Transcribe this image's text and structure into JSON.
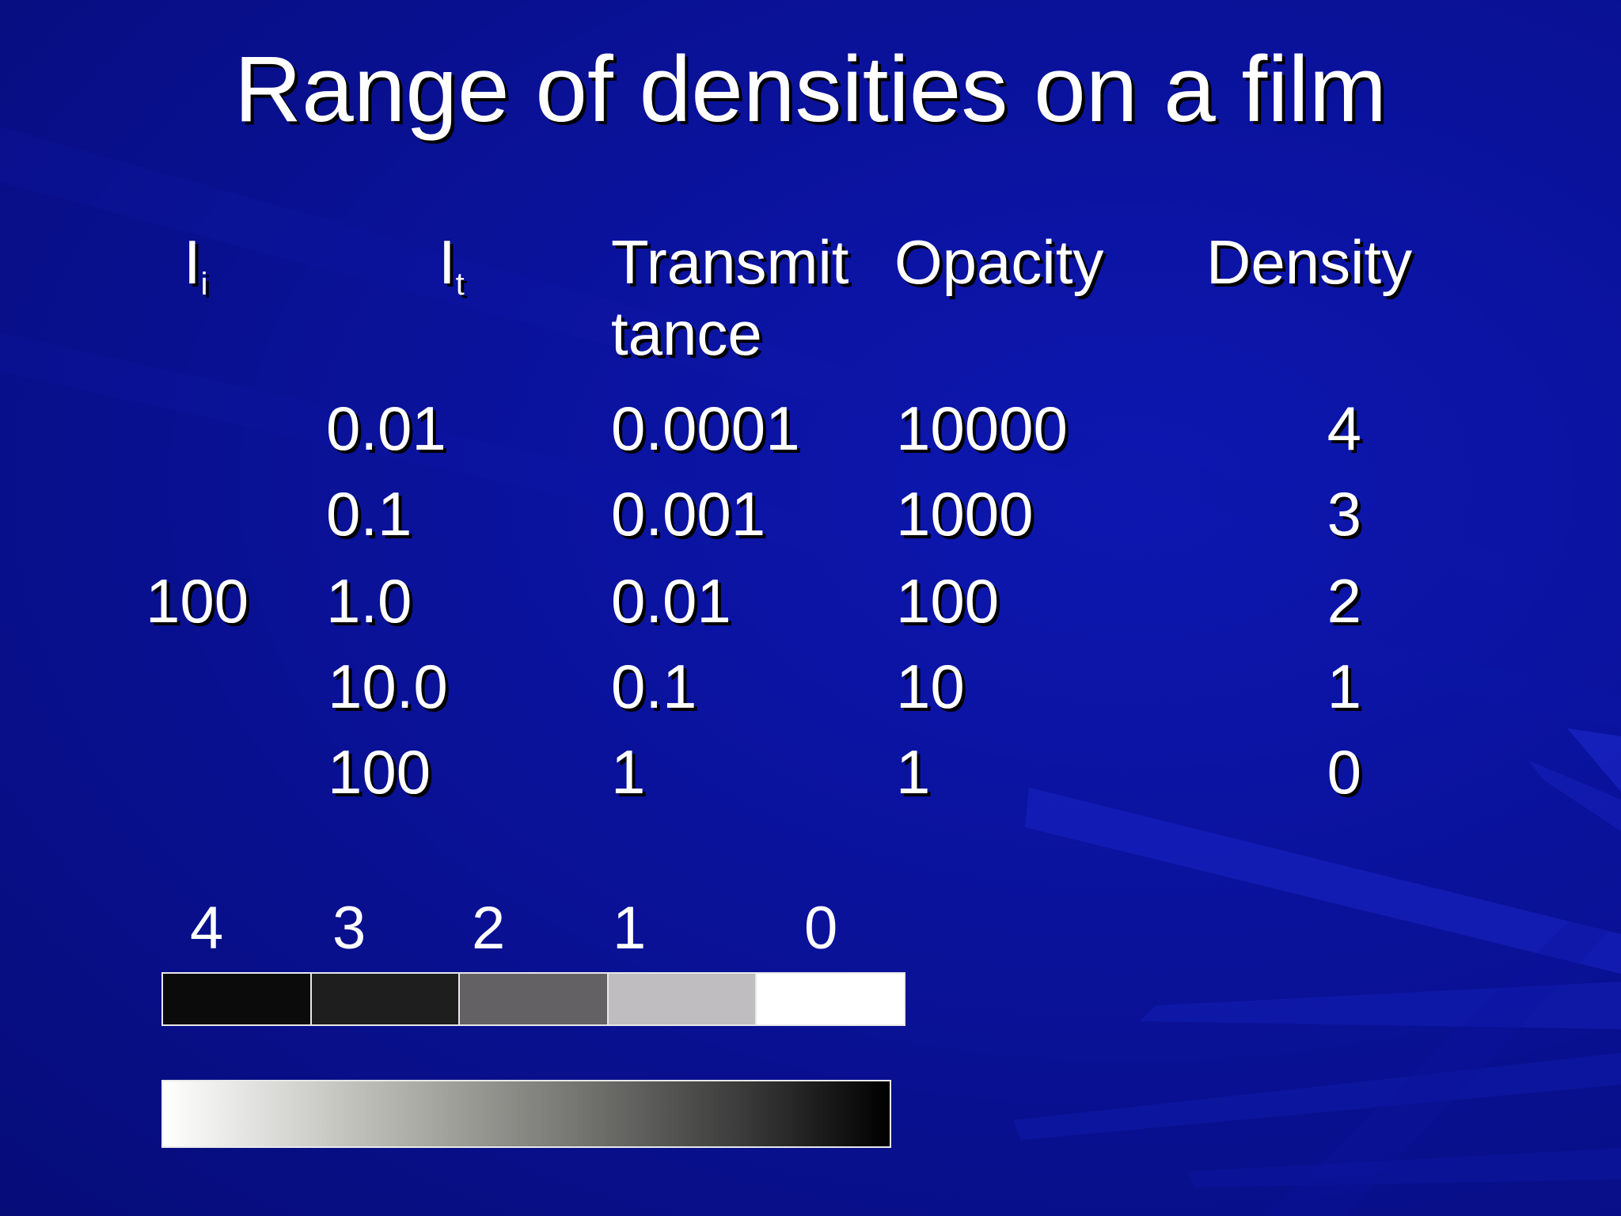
{
  "slide": {
    "title": "Range of densities on a film"
  },
  "table": {
    "headers": {
      "incident_main": "I",
      "incident_sub": "i",
      "transmitted_main": "I",
      "transmitted_sub": "t",
      "transmittance_line1": "Transmit",
      "transmittance_line2": "tance",
      "opacity": "Opacity",
      "density": "Density"
    },
    "incident_value": "100",
    "rows": [
      {
        "transmitted": "0.01",
        "transmittance": "0.0001",
        "opacity": "10000",
        "density": "4"
      },
      {
        "transmitted": "0.1",
        "transmittance": "0.001",
        "opacity": "1000",
        "density": "3"
      },
      {
        "transmitted": "1.0",
        "transmittance": "0.01",
        "opacity": "100",
        "density": "2"
      },
      {
        "transmitted": "10.0",
        "transmittance": "0.1",
        "opacity": "10",
        "density": "1"
      },
      {
        "transmitted": "100",
        "transmittance": "1",
        "opacity": "1",
        "density": "0"
      }
    ]
  },
  "density_strip": {
    "labels": [
      "4",
      "3",
      "2",
      "1",
      "0"
    ],
    "colors": [
      "#0b0b0b",
      "#1e1e1e",
      "#636163",
      "#bfbdbf",
      "#ffffff"
    ]
  },
  "gradient_bar": {
    "start_color": "#ffffff",
    "end_color": "#000000"
  }
}
